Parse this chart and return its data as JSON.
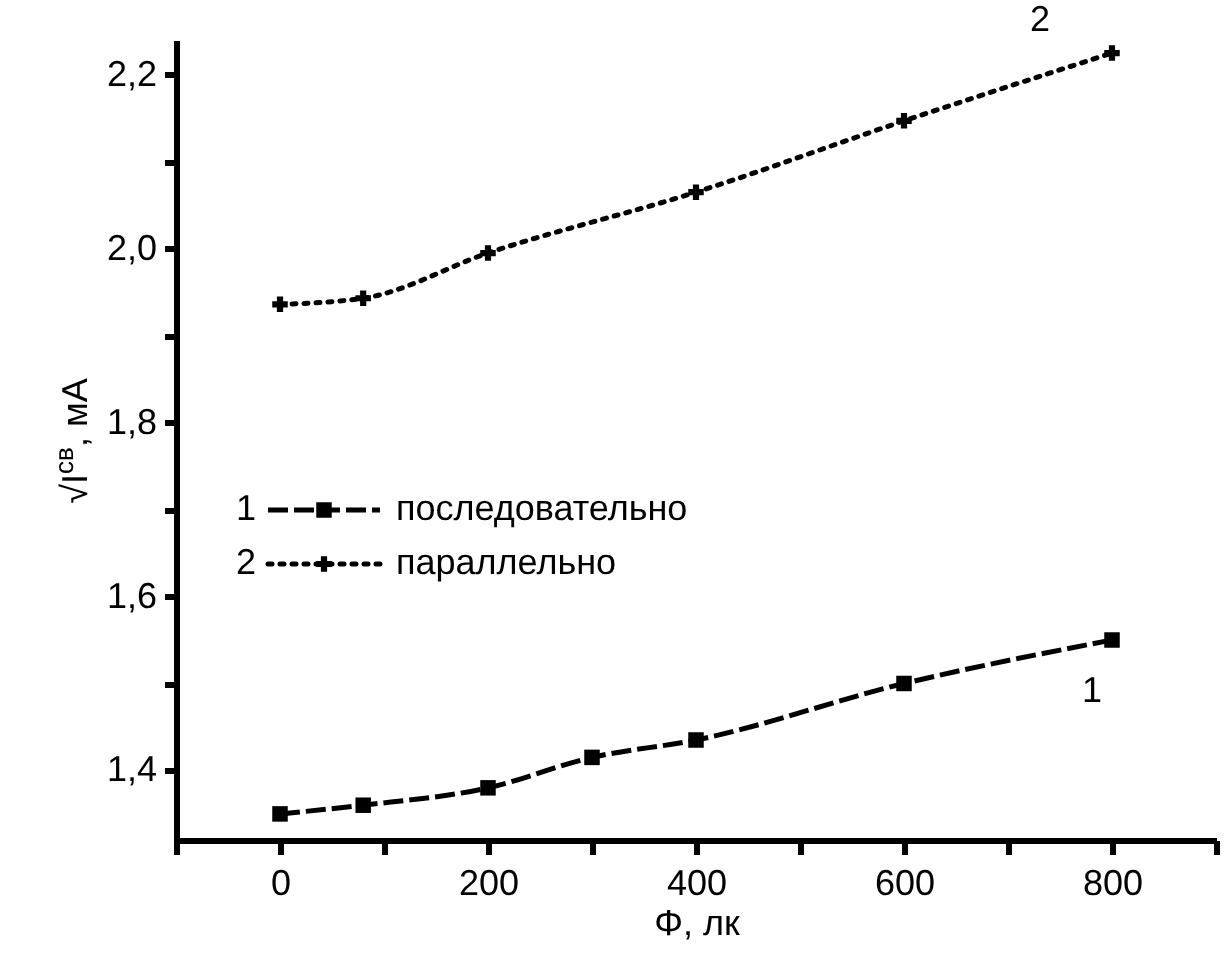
{
  "chart_data": {
    "type": "line",
    "xlabel": "Φ, лк",
    "ylabel": "√I$^{св}$, мА",
    "x": [
      0,
      80,
      200,
      300,
      400,
      600,
      800
    ],
    "series": [
      {
        "name": "последовательно",
        "color": "#000000",
        "marker": "square",
        "line_style": "dashed",
        "values": [
          1.35,
          1.36,
          1.38,
          1.415,
          1.435,
          1.5,
          1.55
        ]
      },
      {
        "name": "параллельно",
        "color": "#000000",
        "marker": "cross",
        "line_style": "dotted",
        "x": [
          0,
          80,
          200,
          400,
          600,
          800
        ],
        "values": [
          1.936,
          1.943,
          1.995,
          2.065,
          2.147,
          2.225
        ]
      }
    ],
    "annotations": [
      "1",
      "2"
    ],
    "xlim": [
      -100,
      900
    ],
    "ylim": [
      1.32,
      2.24
    ],
    "xticks": [
      {
        "value": -100,
        "label": null
      },
      0,
      {
        "value": 100,
        "label": null
      },
      200,
      {
        "value": 300,
        "label": null
      },
      400,
      {
        "value": 500,
        "label": null
      },
      600,
      {
        "value": 700,
        "label": null
      },
      800,
      {
        "value": 900,
        "label": null
      }
    ],
    "yticks": [
      {
        "value": 1.4,
        "label": "1,4"
      },
      {
        "value": 1.5,
        "label": null
      },
      {
        "value": 1.6,
        "label": "1,6"
      },
      {
        "value": 1.7,
        "label": null
      },
      {
        "value": 1.8,
        "label": "1,8"
      },
      {
        "value": 1.9,
        "label": null
      },
      {
        "value": 2.0,
        "label": "2,0"
      },
      {
        "value": 2.1,
        "label": null
      },
      {
        "value": 2.2,
        "label": "2,2"
      }
    ],
    "grid": false,
    "legend": "left"
  }
}
